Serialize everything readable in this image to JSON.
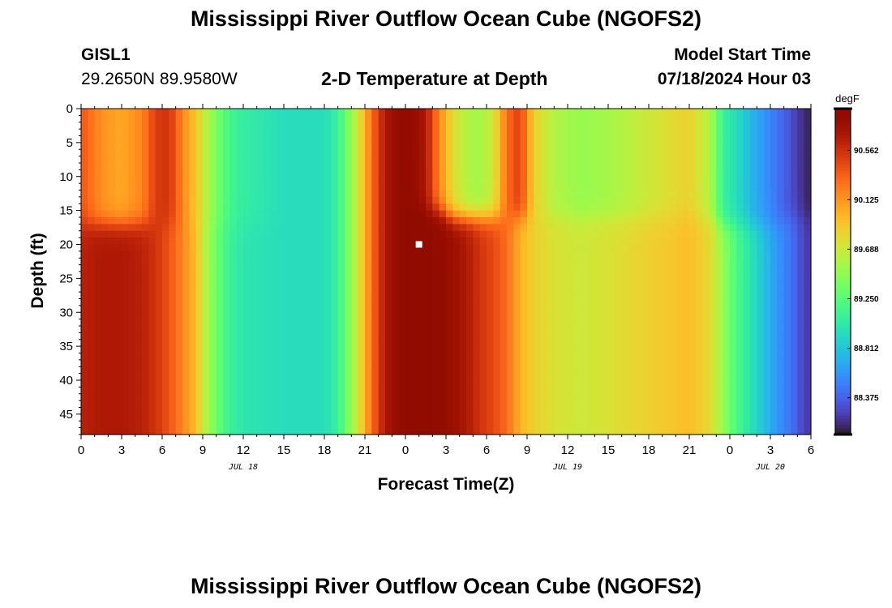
{
  "header": {
    "main_title": "Mississippi River Outflow Ocean Cube (NGOFS2)",
    "station_id": "GISL1",
    "coordinates": "29.2650N  89.9580W",
    "plot_title": "2-D Temperature at Depth",
    "model_start_label": "Model Start Time",
    "model_start_value": "07/18/2024 Hour 03"
  },
  "footer": {
    "title": "Mississippi River Outflow Ocean Cube (NGOFS2)"
  },
  "chart_data": {
    "type": "heatmap",
    "title": "2-D Temperature at Depth",
    "xlabel": "Forecast Time(Z)",
    "ylabel": "Depth (ft)",
    "x_tick_labels": [
      "0",
      "3",
      "6",
      "9",
      "12",
      "15",
      "18",
      "21",
      "0",
      "3",
      "6",
      "9",
      "12",
      "15",
      "18",
      "21",
      "0",
      "3",
      "6"
    ],
    "x_range_hours_from_start": [
      0,
      54
    ],
    "date_labels": [
      {
        "label": "JUL 18",
        "hour": 12
      },
      {
        "label": "JUL 19",
        "hour": 36
      },
      {
        "label": "JUL 20",
        "hour": 51
      }
    ],
    "y_ticks": [
      0,
      5,
      10,
      15,
      20,
      25,
      30,
      35,
      40,
      45
    ],
    "y_range": [
      0,
      48
    ],
    "y_inverted": true,
    "colorbar": {
      "unit": "degF",
      "tick_labels": [
        "90.562",
        "90.125",
        "89.688",
        "89.250",
        "88.812",
        "88.375"
      ],
      "tick_values": [
        90.562,
        90.125,
        89.688,
        89.25,
        88.812,
        88.375
      ],
      "range": [
        88.05,
        90.93
      ],
      "colormap": "turbo"
    },
    "marker": {
      "hour": 25,
      "depth": 20,
      "color": "#ffffff"
    },
    "profile_times_hours": [
      0,
      1.5,
      3,
      4.5,
      5.5,
      6.5,
      7.5,
      8.5,
      9.5,
      10.5,
      11.5,
      12.5,
      15,
      18,
      19,
      19.5,
      20.5,
      21.5,
      22.5,
      23.5,
      24.5,
      25.5,
      26.5,
      27.5,
      28.5,
      29.5,
      30.5,
      31.5,
      32.5,
      33.5,
      35,
      37,
      39,
      42,
      45,
      46.5,
      47.5,
      48.5,
      49.5,
      50.5,
      51.5,
      52.5,
      53.5,
      54
    ],
    "surface_layer_temps": [
      90.4,
      90.15,
      90.05,
      90.2,
      90.5,
      90.55,
      90.2,
      89.9,
      89.55,
      89.25,
      89.1,
      89.05,
      88.95,
      88.95,
      89.1,
      89.3,
      89.7,
      90.3,
      90.7,
      90.85,
      90.85,
      90.7,
      90.2,
      89.8,
      89.6,
      89.55,
      89.7,
      90.3,
      90.5,
      89.85,
      89.6,
      89.5,
      89.55,
      89.7,
      89.85,
      89.6,
      89.1,
      88.95,
      88.75,
      88.6,
      88.45,
      88.3,
      88.15,
      88.1
    ],
    "bottom_layer_temps": [
      90.65,
      90.7,
      90.7,
      90.65,
      90.55,
      90.4,
      90.2,
      89.95,
      89.5,
      89.2,
      89.05,
      89.0,
      88.95,
      88.95,
      89.1,
      89.3,
      89.7,
      90.3,
      90.7,
      90.85,
      90.9,
      90.9,
      90.85,
      90.8,
      90.7,
      90.55,
      90.45,
      90.3,
      90.0,
      89.85,
      89.75,
      89.7,
      89.75,
      89.85,
      89.95,
      89.8,
      89.5,
      89.2,
      89.0,
      88.8,
      88.6,
      88.45,
      88.25,
      88.2
    ],
    "interface_depth_ft": [
      17,
      17,
      17,
      17,
      17,
      17,
      17,
      17,
      17,
      17,
      17,
      17,
      17,
      17,
      17,
      17,
      17,
      16,
      15,
      14,
      14,
      15,
      15,
      16,
      16,
      16,
      16,
      16,
      16,
      16,
      16,
      16,
      16,
      16,
      16,
      16,
      17,
      17,
      17,
      17,
      17,
      16,
      16,
      16
    ]
  }
}
